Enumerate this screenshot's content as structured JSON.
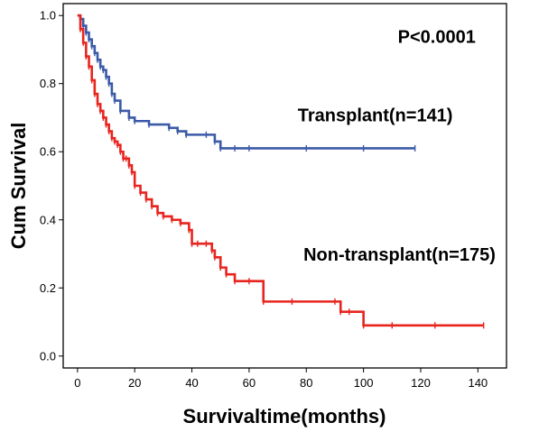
{
  "chart_data": {
    "type": "line",
    "step": true,
    "xlabel": "Survivaltime(months)",
    "ylabel": "Cum Survival",
    "xlim": [
      -5,
      150
    ],
    "ylim": [
      -0.035,
      1.035
    ],
    "xticks": [
      "0",
      "20",
      "40",
      "60",
      "80",
      "100",
      "120",
      "140"
    ],
    "yticks": [
      "0.0",
      "0.2",
      "0.4",
      "0.6",
      "0.8",
      "1.0"
    ],
    "grid": false,
    "legend": "none",
    "annotations": [
      {
        "text": "P<0.0001",
        "x": 112,
        "y": 0.92
      },
      {
        "text": "Transplant(n=141)",
        "x": 77,
        "y": 0.69
      },
      {
        "text": "Non-transplant(n=175)",
        "x": 79,
        "y": 0.28
      }
    ],
    "series": [
      {
        "name": "Transplant(n=141)",
        "color": "#3b5aa8",
        "x": [
          0,
          1,
          2,
          3,
          4,
          5,
          6,
          7,
          8,
          9,
          10,
          11,
          12,
          13,
          15,
          18,
          20,
          25,
          32,
          35,
          38,
          45,
          48,
          50,
          55,
          60,
          80,
          100,
          118
        ],
        "y": [
          1.0,
          0.99,
          0.97,
          0.95,
          0.93,
          0.91,
          0.89,
          0.87,
          0.85,
          0.84,
          0.82,
          0.8,
          0.77,
          0.75,
          0.72,
          0.7,
          0.69,
          0.68,
          0.67,
          0.66,
          0.65,
          0.65,
          0.63,
          0.61,
          0.61,
          0.61,
          0.61,
          0.61,
          0.61
        ]
      },
      {
        "name": "Non-transplant(n=175)",
        "color": "#e8241f",
        "x": [
          0,
          1,
          2,
          3,
          4,
          5,
          6,
          7,
          8,
          9,
          10,
          11,
          12,
          13,
          14,
          15,
          16,
          17,
          18,
          19,
          20,
          22,
          24,
          26,
          28,
          30,
          33,
          36,
          39,
          40,
          42,
          45,
          47,
          48,
          50,
          52,
          55,
          60,
          65,
          75,
          90,
          92,
          95,
          100,
          110,
          125,
          142
        ],
        "y": [
          1.0,
          0.96,
          0.92,
          0.88,
          0.85,
          0.81,
          0.77,
          0.74,
          0.72,
          0.7,
          0.68,
          0.66,
          0.64,
          0.63,
          0.62,
          0.6,
          0.58,
          0.58,
          0.56,
          0.54,
          0.5,
          0.48,
          0.46,
          0.44,
          0.42,
          0.41,
          0.4,
          0.39,
          0.37,
          0.33,
          0.33,
          0.33,
          0.31,
          0.29,
          0.26,
          0.24,
          0.22,
          0.22,
          0.16,
          0.16,
          0.16,
          0.13,
          0.13,
          0.09,
          0.09,
          0.09,
          0.09
        ]
      }
    ]
  }
}
